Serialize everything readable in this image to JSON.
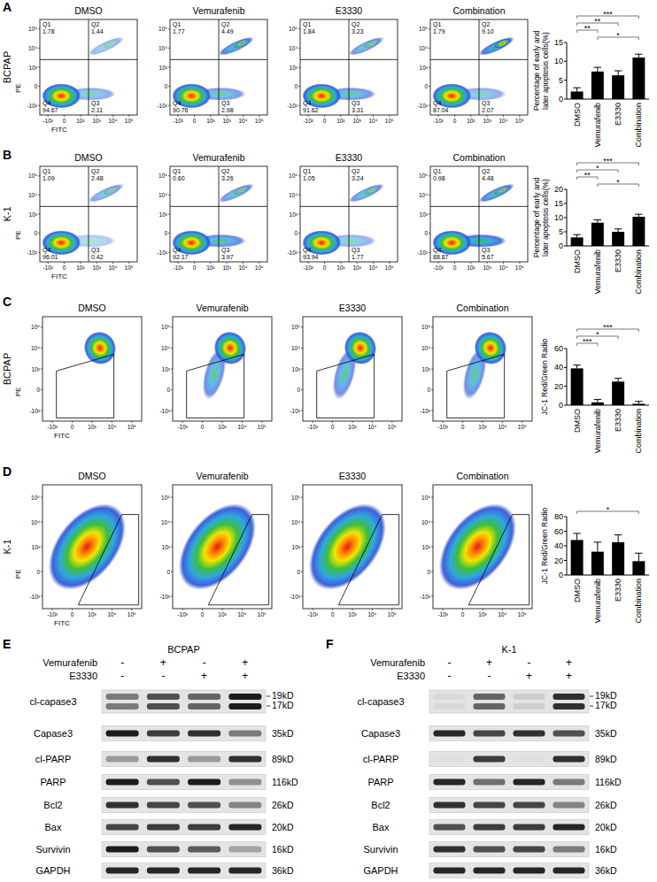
{
  "panel_labels": [
    "A",
    "B",
    "C",
    "D",
    "E",
    "F"
  ],
  "flow_panels": [
    {
      "row_label": "BCPAP",
      "x_axis_label": "FITC",
      "y_axis_label": "PE",
      "x_tick_labels": [
        "-10²",
        "0",
        "10²",
        "10³",
        "10⁴",
        "10⁵"
      ],
      "y_tick_labels": [
        "-10²",
        "0",
        "10³",
        "10⁴",
        "10⁵"
      ],
      "plots": [
        {
          "title": "DMSO",
          "quadrants": [
            {
              "name": "Q1",
              "value": 1.78
            },
            {
              "name": "Q2",
              "value": 1.44
            },
            {
              "name": "Q3",
              "value": 2.11
            },
            {
              "name": "Q4",
              "value": 94.67
            }
          ]
        },
        {
          "title": "Vemurafenib",
          "quadrants": [
            {
              "name": "Q1",
              "value": 1.77
            },
            {
              "name": "Q2",
              "value": 4.49
            },
            {
              "name": "Q3",
              "value": 2.98
            },
            {
              "name": "Q4",
              "value": 90.76
            }
          ]
        },
        {
          "title": "E3330",
          "quadrants": [
            {
              "name": "Q1",
              "value": 1.84
            },
            {
              "name": "Q2",
              "value": 3.23
            },
            {
              "name": "Q3",
              "value": 3.31
            },
            {
              "name": "Q4",
              "value": 91.62
            }
          ]
        },
        {
          "title": "Combination",
          "quadrants": [
            {
              "name": "Q1",
              "value": 1.79
            },
            {
              "name": "Q2",
              "value": 9.1,
              "label": "9.10"
            },
            {
              "name": "Q3",
              "value": 2.07
            },
            {
              "name": "Q4",
              "value": 87.04
            }
          ]
        }
      ]
    },
    {
      "row_label": "K-1",
      "x_axis_label": "FITC",
      "y_axis_label": "PE",
      "x_tick_labels": [
        "-10²",
        "0",
        "10²",
        "10³",
        "10⁴",
        "10⁵"
      ],
      "y_tick_labels": [
        "-10²",
        "0",
        "10³",
        "10⁴",
        "10⁵"
      ],
      "plots": [
        {
          "title": "DMSO",
          "quadrants": [
            {
              "name": "Q1",
              "value": 1.09
            },
            {
              "name": "Q2",
              "value": 2.48
            },
            {
              "name": "Q3",
              "value": 0.42
            },
            {
              "name": "Q4",
              "value": 96.01
            }
          ]
        },
        {
          "title": "Vemurafenib",
          "quadrants": [
            {
              "name": "Q1",
              "value": 0.6,
              "label": "0.60"
            },
            {
              "name": "Q2",
              "value": 3.26
            },
            {
              "name": "Q3",
              "value": 3.97
            },
            {
              "name": "Q4",
              "value": 92.17
            }
          ]
        },
        {
          "title": "E3330",
          "quadrants": [
            {
              "name": "Q1",
              "value": 1.05
            },
            {
              "name": "Q2",
              "value": 3.24
            },
            {
              "name": "Q3",
              "value": 1.77
            },
            {
              "name": "Q4",
              "value": 93.94
            }
          ]
        },
        {
          "title": "Combination",
          "quadrants": [
            {
              "name": "Q1",
              "value": 0.98
            },
            {
              "name": "Q2",
              "value": 4.48
            },
            {
              "name": "Q3",
              "value": 5.67
            },
            {
              "name": "Q4",
              "value": 88.87
            }
          ]
        }
      ]
    },
    {
      "row_label": "BCPAP",
      "x_axis_label": "FITC",
      "y_axis_label": "PE",
      "x_tick_labels": [
        "-10³",
        "0",
        "10³",
        "10⁴",
        "10⁵"
      ],
      "y_tick_labels": [
        "-10³",
        "0",
        "10³",
        "10⁴",
        "10⁵"
      ],
      "plots": [
        {
          "title": "DMSO"
        },
        {
          "title": "Vemurafenib"
        },
        {
          "title": "E3330"
        },
        {
          "title": "Combination"
        }
      ]
    },
    {
      "row_label": "K-1",
      "x_axis_label": "FITC",
      "y_axis_label": "PE",
      "x_tick_labels": [
        "-10³",
        "0",
        "10³",
        "10⁴",
        "10⁵"
      ],
      "y_tick_labels": [
        "-10³",
        "0",
        "10³",
        "10⁴",
        "10⁵"
      ],
      "plots": [
        {
          "title": "DMSO"
        },
        {
          "title": "Vemurafenib"
        },
        {
          "title": "E3330"
        },
        {
          "title": "Combination"
        }
      ]
    }
  ],
  "chart_data": [
    {
      "type": "bar",
      "y_label": "Percentage of early and later apoptosis cells(%)",
      "categories": [
        "DMSO",
        "Vemurafenib",
        "E3330",
        "Combination"
      ],
      "values": [
        2.0,
        7.3,
        6.3,
        11.0
      ],
      "errors": [
        1.0,
        1.1,
        1.2,
        0.9
      ],
      "color": "#000000",
      "ylim": [
        0,
        15
      ],
      "yticks": [
        0,
        5,
        10,
        15
      ],
      "comparisons": [
        {
          "groups": [
            "Vemurafenib",
            "Combination"
          ],
          "label": "*"
        },
        {
          "groups": [
            "DMSO",
            "Vemurafenib"
          ],
          "label": "**"
        },
        {
          "groups": [
            "DMSO",
            "E3330"
          ],
          "label": "**"
        },
        {
          "groups": [
            "DMSO",
            "Combination"
          ],
          "label": "***"
        }
      ]
    },
    {
      "type": "bar",
      "y_label": "Percentage of early and later apoptosis cells(%)",
      "categories": [
        "DMSO",
        "Vemurafenib",
        "E3330",
        "Combination"
      ],
      "values": [
        3.0,
        8.2,
        5.0,
        10.3
      ],
      "errors": [
        1.0,
        1.0,
        1.0,
        0.9
      ],
      "color": "#000000",
      "ylim": [
        0,
        20
      ],
      "yticks": [
        0,
        5,
        10,
        15,
        20
      ],
      "comparisons": [
        {
          "groups": [
            "Vemurafenib",
            "Combination"
          ],
          "label": "*"
        },
        {
          "groups": [
            "DMSO",
            "Vemurafenib"
          ],
          "label": "**"
        },
        {
          "groups": [
            "DMSO",
            "E3330"
          ],
          "label": "*"
        },
        {
          "groups": [
            "DMSO",
            "Combination"
          ],
          "label": "***"
        }
      ]
    },
    {
      "type": "bar",
      "y_label": "JC-1 Red/Green Radio",
      "categories": [
        "DMSO",
        "Vemurafenib",
        "E3330",
        "Combination"
      ],
      "values": [
        39,
        3,
        25,
        1.5
      ],
      "errors": [
        3.5,
        3,
        3.5,
        2.5
      ],
      "color": "#000000",
      "ylim": [
        0,
        60
      ],
      "yticks": [
        0,
        20,
        40,
        60
      ],
      "comparisons": [
        {
          "groups": [
            "DMSO",
            "Vemurafenib"
          ],
          "label": "***"
        },
        {
          "groups": [
            "DMSO",
            "E3330"
          ],
          "label": "*"
        },
        {
          "groups": [
            "DMSO",
            "Combination"
          ],
          "label": "***"
        }
      ]
    },
    {
      "type": "bar",
      "y_label": "JC-1 Red/Green Radio",
      "categories": [
        "DMSO",
        "Vemurafenib",
        "E3330",
        "Combination"
      ],
      "values": [
        48,
        32,
        45,
        19
      ],
      "errors": [
        9,
        13,
        10,
        11
      ],
      "color": "#000000",
      "ylim": [
        0,
        80
      ],
      "yticks": [
        0,
        20,
        40,
        60,
        80
      ],
      "comparisons": [
        {
          "groups": [
            "DMSO",
            "Combination"
          ],
          "label": "*"
        }
      ]
    }
  ],
  "western_blots": [
    {
      "title": "BCPAP",
      "treatments": [
        {
          "name": "Vemurafenib",
          "lanes": [
            "-",
            "+",
            "-",
            "+"
          ]
        },
        {
          "name": "E3330",
          "lanes": [
            "-",
            "-",
            "+",
            "+"
          ]
        }
      ],
      "rows": [
        {
          "label": "cl-capase3",
          "sizes": [
            "19kD",
            "17kD"
          ],
          "bands": [
            0.5,
            0.7,
            0.6,
            0.95
          ]
        },
        {
          "label": "Capase3",
          "sizes": [
            "35kD"
          ],
          "bands": [
            0.95,
            0.8,
            0.85,
            0.5
          ]
        },
        {
          "label": "cl-PARP",
          "sizes": [
            "89kD"
          ],
          "bands": [
            0.35,
            0.85,
            0.35,
            0.85
          ]
        },
        {
          "label": "PARP",
          "sizes": [
            "116kD"
          ],
          "bands": [
            0.95,
            0.7,
            0.95,
            0.4
          ]
        },
        {
          "label": "Bcl2",
          "sizes": [
            "26kD"
          ],
          "bands": [
            0.85,
            0.75,
            0.7,
            0.45
          ]
        },
        {
          "label": "Bax",
          "sizes": [
            "20kD"
          ],
          "bands": [
            0.75,
            0.8,
            0.8,
            0.9
          ]
        },
        {
          "label": "Survivin",
          "sizes": [
            "16kD"
          ],
          "bands": [
            0.95,
            0.7,
            0.65,
            0.3
          ]
        },
        {
          "label": "GAPDH",
          "sizes": [
            "36kD"
          ],
          "bands": [
            0.9,
            0.9,
            0.9,
            0.9
          ]
        }
      ]
    },
    {
      "title": "K-1",
      "treatments": [
        {
          "name": "Vemurafenib",
          "lanes": [
            "-",
            "+",
            "-",
            "+"
          ]
        },
        {
          "name": "E3330",
          "lanes": [
            "-",
            "-",
            "+",
            "+"
          ]
        }
      ],
      "rows": [
        {
          "label": "cl-capase3",
          "sizes": [
            "19kD",
            "17kD"
          ],
          "bands": [
            0.05,
            0.6,
            0.1,
            0.85
          ]
        },
        {
          "label": "Capase3",
          "sizes": [
            "35kD"
          ],
          "bands": [
            0.9,
            0.75,
            0.85,
            0.7
          ]
        },
        {
          "label": "cl-PARP",
          "sizes": [
            "89kD"
          ],
          "bands": [
            0.02,
            0.8,
            0.02,
            0.85
          ]
        },
        {
          "label": "PARP",
          "sizes": [
            "116kD"
          ],
          "bands": [
            0.9,
            0.55,
            0.9,
            0.5
          ]
        },
        {
          "label": "Bcl2",
          "sizes": [
            "26kD"
          ],
          "bands": [
            0.85,
            0.75,
            0.75,
            0.45
          ]
        },
        {
          "label": "Bax",
          "sizes": [
            "20kD"
          ],
          "bands": [
            0.7,
            0.8,
            0.8,
            0.9
          ]
        },
        {
          "label": "Survivin",
          "sizes": [
            "16kD"
          ],
          "bands": [
            0.85,
            0.7,
            0.75,
            0.5
          ]
        },
        {
          "label": "GAPDH",
          "sizes": [
            "36kD"
          ],
          "bands": [
            0.9,
            0.9,
            0.9,
            0.9
          ]
        }
      ]
    }
  ]
}
